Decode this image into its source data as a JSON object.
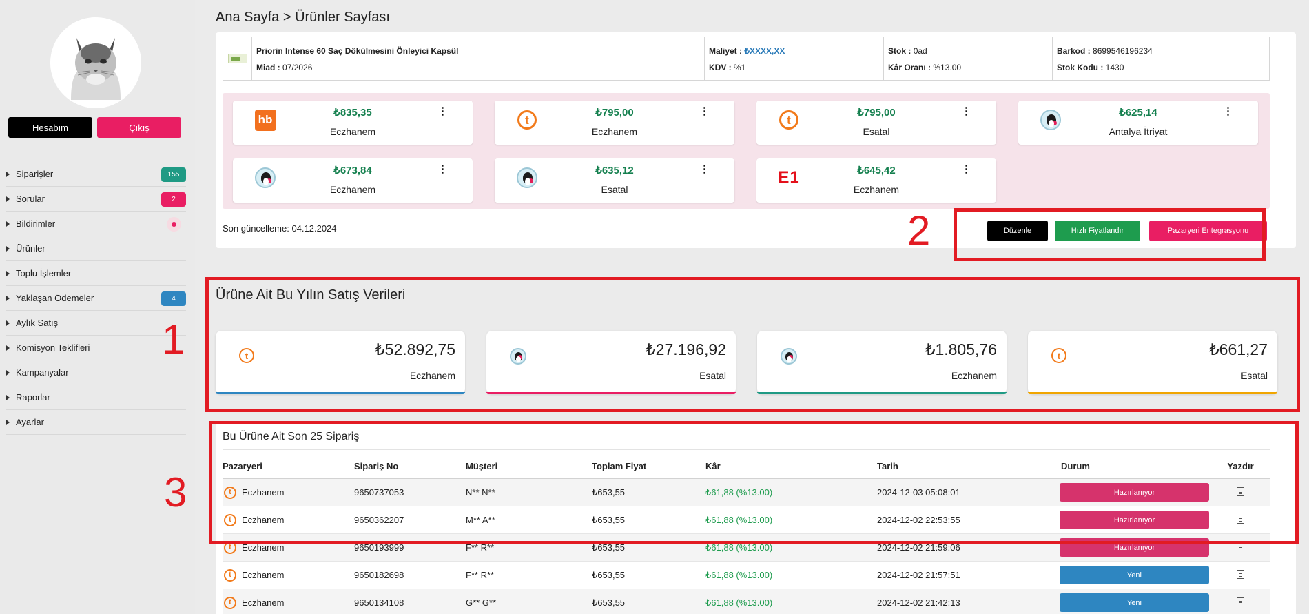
{
  "sidebar": {
    "account_label": "Hesabım",
    "logout_label": "Çıkış",
    "items": [
      {
        "label": "Siparişler",
        "badge": "155"
      },
      {
        "label": "Sorular",
        "badge": "2"
      },
      {
        "label": "Bildirimler"
      },
      {
        "label": "Ürünler"
      },
      {
        "label": "Toplu İşlemler"
      },
      {
        "label": "Yaklaşan Ödemeler",
        "badge": "4"
      },
      {
        "label": "Aylık Satış"
      },
      {
        "label": "Komisyon Teklifleri"
      },
      {
        "label": "Kampanyalar"
      },
      {
        "label": "Raporlar"
      },
      {
        "label": "Ayarlar"
      }
    ]
  },
  "breadcrumb": "Ana Sayfa > Ürünler Sayfası",
  "product": {
    "name": "Priorin Intense 60 Saç Dökülmesini Önleyici Kapsül",
    "expiry_label": "Miad :",
    "expiry": "07/2026",
    "cost_label": "Maliyet :",
    "cost": "₺XXXX,XX",
    "vat_label": "KDV :",
    "vat": "%1",
    "stock_label": "Stok :",
    "stock": "0ad",
    "margin_label": "Kâr Oranı :",
    "margin": "%13.00",
    "barcode_label": "Barkod :",
    "barcode": "8699546196234",
    "stock_code_label": "Stok Kodu :",
    "stock_code": "1430"
  },
  "marketplaces": [
    {
      "logo": "hepsiburada-logo",
      "logo_text": "hb",
      "price": "₺835,35",
      "shop": "Eczhanem"
    },
    {
      "logo": "trendyol-logo",
      "logo_text": "t",
      "price": "₺795,00",
      "shop": "Eczhanem"
    },
    {
      "logo": "trendyol-logo",
      "logo_text": "t",
      "price": "₺795,00",
      "shop": "Esatal"
    },
    {
      "logo": "prestashop-logo",
      "price": "₺625,14",
      "shop": "Antalya İtriyat"
    },
    {
      "logo": "prestashop-logo",
      "price": "₺673,84",
      "shop": "Eczhanem"
    },
    {
      "logo": "prestashop-logo",
      "price": "₺635,12",
      "shop": "Esatal"
    },
    {
      "logo": "e1-logo",
      "logo_text": "E1",
      "price": "₺645,42",
      "shop": "Eczhanem"
    }
  ],
  "more_glyph": "⋮",
  "last_update": "Son güncelleme: 04.12.2024",
  "actions": {
    "edit": "Düzenle",
    "quick_price": "Hızlı Fiyatlandır",
    "integration": "Pazaryeri Entegrasyonu"
  },
  "annotations": {
    "n1": "1",
    "n2": "2",
    "n3": "3",
    "color": "#e21b23"
  },
  "sales": {
    "title": "Ürüne Ait Bu Yılın Satış Verileri",
    "cards": [
      {
        "logo": "trendyol-logo",
        "logo_text": "t",
        "amount": "₺52.892,75",
        "shop": "Eczhanem",
        "accent": "#2e86c1"
      },
      {
        "logo": "prestashop-logo",
        "amount": "₺27.196,92",
        "shop": "Esatal",
        "accent": "#e91e63"
      },
      {
        "logo": "prestashop-logo",
        "amount": "₺1.805,76",
        "shop": "Eczhanem",
        "accent": "#1f9a84"
      },
      {
        "logo": "trendyol-logo",
        "logo_text": "t",
        "amount": "₺661,27",
        "shop": "Esatal",
        "accent": "#f0a500"
      }
    ]
  },
  "orders": {
    "title": "Bu Ürüne Ait Son 25 Sipariş",
    "columns": [
      "Pazaryeri",
      "Sipariş No",
      "Müşteri",
      "Toplam Fiyat",
      "Kâr",
      "Tarih",
      "Durum",
      "Yazdır"
    ],
    "rows": [
      {
        "marketplace": "Eczhanem",
        "order_no": "9650737053",
        "customer": "N** N**",
        "total": "₺653,55",
        "profit": "₺61,88 (%13.00)",
        "date": "2024-12-03 05:08:01",
        "status": "Hazırlanıyor"
      },
      {
        "marketplace": "Eczhanem",
        "order_no": "9650362207",
        "customer": "M** A**",
        "total": "₺653,55",
        "profit": "₺61,88 (%13.00)",
        "date": "2024-12-02 22:53:55",
        "status": "Hazırlanıyor"
      },
      {
        "marketplace": "Eczhanem",
        "order_no": "9650193999",
        "customer": "F** R**",
        "total": "₺653,55",
        "profit": "₺61,88 (%13.00)",
        "date": "2024-12-02 21:59:06",
        "status": "Hazırlanıyor"
      },
      {
        "marketplace": "Eczhanem",
        "order_no": "9650182698",
        "customer": "F** R**",
        "total": "₺653,55",
        "profit": "₺61,88 (%13.00)",
        "date": "2024-12-02 21:57:51",
        "status": "Yeni"
      },
      {
        "marketplace": "Eczhanem",
        "order_no": "9650134108",
        "customer": "G** G**",
        "total": "₺653,55",
        "profit": "₺61,88 (%13.00)",
        "date": "2024-12-02 21:42:13",
        "status": "Yeni"
      }
    ]
  }
}
